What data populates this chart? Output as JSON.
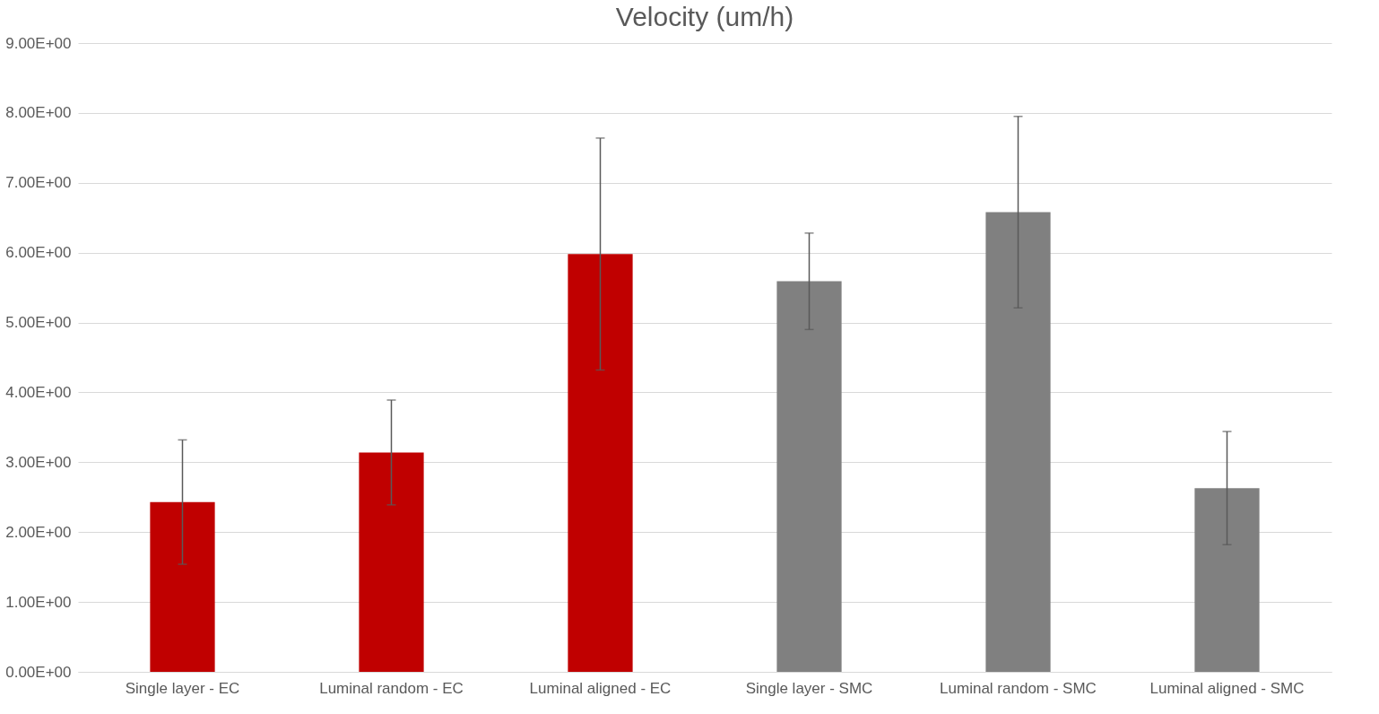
{
  "chart_data": {
    "type": "bar",
    "title": "Velocity (um/h)",
    "categories": [
      "Single layer - EC",
      "Luminal random - EC",
      "Luminal aligned - EC",
      "Single layer - SMC",
      "Luminal random - SMC",
      "Luminal aligned - SMC"
    ],
    "values": [
      2.43,
      3.14,
      5.98,
      5.59,
      6.58,
      2.63
    ],
    "colors": [
      "#c00000",
      "#c00000",
      "#c00000",
      "#808080",
      "#808080",
      "#808080"
    ],
    "errors": [
      0.89,
      0.75,
      1.66,
      0.69,
      1.37,
      0.81
    ],
    "ylim": [
      0,
      9
    ],
    "yticks": [
      {
        "value": 0,
        "label": "0.00E+00"
      },
      {
        "value": 1,
        "label": "1.00E+00"
      },
      {
        "value": 2,
        "label": "2.00E+00"
      },
      {
        "value": 3,
        "label": "3.00E+00"
      },
      {
        "value": 4,
        "label": "4.00E+00"
      },
      {
        "value": 5,
        "label": "5.00E+00"
      },
      {
        "value": 6,
        "label": "6.00E+00"
      },
      {
        "value": 7,
        "label": "7.00E+00"
      },
      {
        "value": 8,
        "label": "8.00E+00"
      },
      {
        "value": 9,
        "label": "9.00E+00"
      }
    ],
    "grid": "y"
  }
}
